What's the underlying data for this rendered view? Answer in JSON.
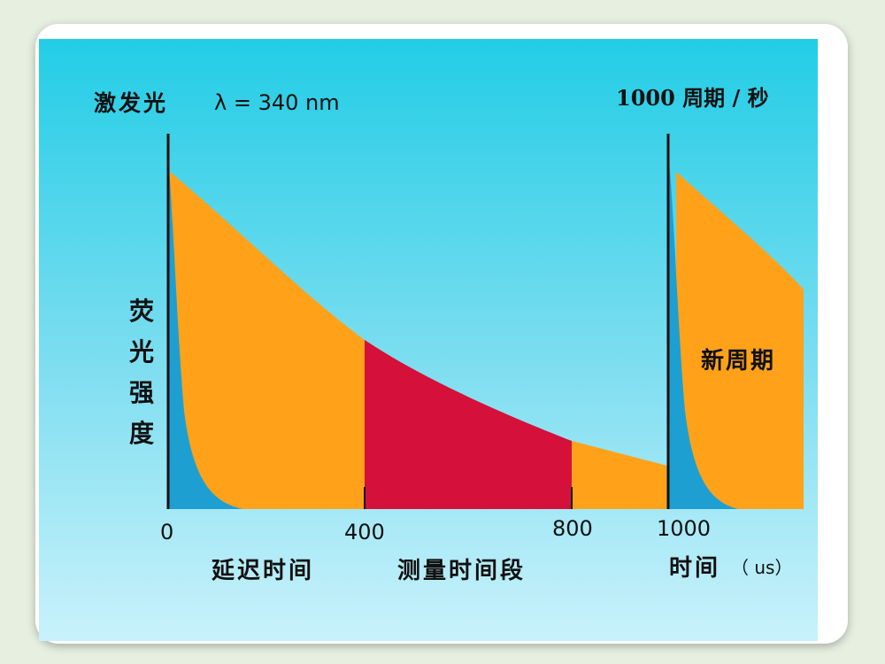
{
  "excitation_label": "激发光",
  "wavelength_label": "λ = 340 nm",
  "frequency_label": "1000 周期 / 秒",
  "y_axis_label": "荧光强度",
  "new_cycle_label": "新周期",
  "x_ticks": [
    "0",
    "400",
    "800",
    "1000"
  ],
  "delay_label": "延迟时间",
  "measure_label": "测量时间段",
  "time_label": "时间",
  "unit_label": "（ us）",
  "colors": {
    "background": "#2ed0e8",
    "long_decay": "#ffa21a",
    "short_decay": "#1e9fd2",
    "measurement_window": "#d5103a",
    "pulse_line": "#111111"
  }
}
